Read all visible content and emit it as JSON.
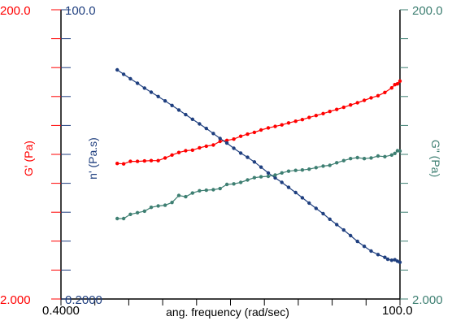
{
  "chart_data": {
    "type": "line",
    "title": "",
    "xlabel": "ang. frequency (rad/sec)",
    "xscale": "log",
    "xlim": [
      0.4,
      100.0
    ],
    "x_tick_labels": [
      "0.4000",
      "100.0"
    ],
    "grid": false,
    "legend": "none",
    "axes": [
      {
        "id": "gp",
        "side": "left-outer",
        "label": "G' (Pa)",
        "color": "#ff0000",
        "scale": "log",
        "lim": [
          2.0,
          200.0
        ],
        "tick_labels": [
          "2.000",
          "200.0"
        ]
      },
      {
        "id": "eta",
        "side": "left-inner",
        "label": "n' (Pa.s)",
        "color": "#1f3f7f",
        "scale": "log",
        "lim": [
          0.2,
          100.0
        ],
        "tick_labels": [
          "0.2000",
          "100.0"
        ]
      },
      {
        "id": "gpp",
        "side": "right",
        "label": "G\" (Pa)",
        "color": "#3e7f72",
        "scale": "log",
        "lim": [
          2.0,
          200.0
        ],
        "tick_labels": [
          "2.000",
          "200.0"
        ]
      }
    ],
    "series": [
      {
        "axis": "gp",
        "color": "#ff0000",
        "x": [
          1.0,
          1.11,
          1.24,
          1.39,
          1.56,
          1.74,
          1.95,
          2.18,
          2.44,
          2.73,
          3.05,
          3.41,
          3.82,
          4.27,
          4.78,
          5.34,
          5.97,
          6.68,
          7.47,
          8.35,
          9.34,
          10.4,
          11.7,
          13.1,
          14.6,
          16.3,
          18.3,
          20.4,
          22.8,
          25.5,
          28.6,
          31.9,
          35.7,
          40.0,
          44.7,
          50.0,
          55.9,
          62.5,
          69.9,
          78.2,
          87.4,
          92.0,
          96.0,
          100.0
        ],
        "y": [
          17.3,
          17.2,
          17.9,
          17.9,
          18.0,
          18.1,
          18.1,
          18.9,
          19.8,
          20.6,
          21.2,
          21.4,
          22.2,
          22.8,
          23.2,
          24.6,
          25.0,
          25.5,
          26.7,
          27.6,
          28.4,
          29.5,
          30.5,
          31.2,
          32.0,
          33.0,
          33.9,
          34.8,
          36.0,
          37.1,
          38.3,
          39.6,
          40.9,
          42.3,
          43.9,
          45.5,
          47.3,
          49.2,
          50.9,
          53.6,
          57.6,
          60.7,
          61.5,
          64.2
        ]
      },
      {
        "axis": "eta",
        "color": "#1f3f7f",
        "x": [
          1.0,
          1.11,
          1.24,
          1.39,
          1.56,
          1.74,
          1.95,
          2.18,
          2.44,
          2.73,
          3.05,
          3.41,
          3.82,
          4.27,
          4.78,
          5.34,
          5.97,
          6.68,
          7.47,
          8.35,
          9.34,
          10.4,
          11.7,
          13.1,
          14.6,
          16.3,
          18.3,
          20.4,
          22.8,
          25.5,
          28.6,
          31.9,
          35.7,
          40.0,
          44.7,
          50.0,
          55.9,
          62.5,
          69.9,
          78.2,
          82.0,
          87.4,
          92.0,
          96.0,
          100.0
        ],
        "y": [
          27.5,
          25.0,
          22.7,
          20.6,
          18.6,
          17.0,
          15.5,
          14.1,
          12.8,
          11.6,
          10.5,
          9.5,
          8.6,
          7.8,
          7.0,
          6.3,
          5.7,
          5.1,
          4.6,
          4.2,
          3.8,
          3.4,
          3.0,
          2.7,
          2.45,
          2.2,
          1.97,
          1.76,
          1.57,
          1.4,
          1.25,
          1.11,
          0.99,
          0.88,
          0.78,
          0.69,
          0.62,
          0.56,
          0.52,
          0.49,
          0.47,
          0.46,
          0.465,
          0.45,
          0.44
        ]
      },
      {
        "axis": "gpp",
        "color": "#3e7f72",
        "x": [
          1.0,
          1.11,
          1.24,
          1.39,
          1.56,
          1.74,
          1.95,
          2.18,
          2.44,
          2.73,
          3.05,
          3.41,
          3.82,
          4.27,
          4.78,
          5.34,
          5.97,
          6.68,
          7.47,
          8.35,
          9.34,
          10.4,
          11.7,
          13.1,
          14.6,
          16.3,
          18.3,
          20.4,
          22.8,
          25.5,
          28.6,
          31.9,
          35.7,
          40.0,
          44.7,
          50.0,
          55.9,
          62.5,
          69.9,
          78.2,
          87.4,
          92.0,
          96.0,
          100.0
        ],
        "y": [
          7.2,
          7.2,
          7.7,
          7.9,
          8.1,
          8.6,
          8.8,
          8.9,
          9.3,
          10.4,
          10.2,
          10.8,
          11.2,
          11.3,
          11.4,
          11.6,
          12.4,
          12.5,
          12.8,
          13.3,
          13.8,
          14.0,
          14.1,
          14.4,
          14.9,
          15.3,
          15.5,
          15.6,
          15.8,
          16.2,
          16.6,
          16.8,
          17.5,
          18.1,
          18.7,
          19.0,
          18.7,
          18.9,
          19.5,
          19.3,
          19.8,
          20.3,
          21.2,
          21.1
        ]
      }
    ]
  }
}
